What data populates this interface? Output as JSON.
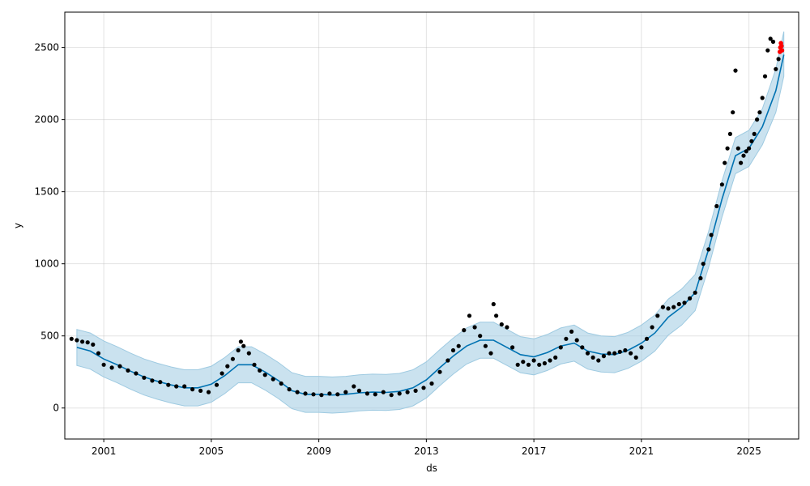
{
  "chart_data": {
    "type": "line",
    "title": "",
    "xlabel": "ds",
    "ylabel": "y",
    "xlim": [
      1999.55,
      2026.85
    ],
    "ylim": [
      -215,
      2745
    ],
    "x_ticks": [
      2001,
      2005,
      2009,
      2013,
      2017,
      2021,
      2025
    ],
    "x_tick_labels": [
      "2001",
      "2005",
      "2009",
      "2013",
      "2017",
      "2021",
      "2025"
    ],
    "y_ticks": [
      0,
      500,
      1000,
      1500,
      2000,
      2500
    ],
    "y_tick_labels": [
      "0",
      "500",
      "1000",
      "1500",
      "2000",
      "2500"
    ],
    "grid": true,
    "colors": {
      "observed": "#000000",
      "forecast_line": "#0072B2",
      "uncertainty_band": "#9ecae1",
      "highlight": "#ff0000"
    },
    "forecast": {
      "name": "yhat",
      "x": [
        2000.0,
        2000.5,
        2001.0,
        2001.5,
        2002.0,
        2002.5,
        2003.0,
        2003.5,
        2004.0,
        2004.5,
        2005.0,
        2005.5,
        2006.0,
        2006.5,
        2007.0,
        2007.5,
        2008.0,
        2008.5,
        2009.0,
        2009.5,
        2010.0,
        2010.5,
        2011.0,
        2011.5,
        2012.0,
        2012.5,
        2013.0,
        2013.5,
        2014.0,
        2014.5,
        2015.0,
        2015.5,
        2016.0,
        2016.5,
        2017.0,
        2017.5,
        2018.0,
        2018.5,
        2019.0,
        2019.5,
        2020.0,
        2020.5,
        2021.0,
        2021.5,
        2022.0,
        2022.5,
        2023.0,
        2023.5,
        2024.0,
        2024.5,
        2025.0,
        2025.5,
        2026.0,
        2026.3
      ],
      "y": [
        420,
        395,
        340,
        300,
        255,
        215,
        185,
        160,
        140,
        140,
        165,
        225,
        300,
        300,
        250,
        190,
        120,
        95,
        95,
        90,
        95,
        105,
        110,
        108,
        115,
        140,
        195,
        280,
        360,
        430,
        470,
        470,
        420,
        370,
        355,
        385,
        430,
        450,
        395,
        375,
        370,
        400,
        450,
        520,
        630,
        700,
        800,
        1100,
        1450,
        1750,
        1800,
        1950,
        2200,
        2450
      ],
      "upper": [
        545,
        520,
        465,
        425,
        380,
        340,
        310,
        285,
        265,
        265,
        290,
        350,
        425,
        425,
        375,
        315,
        245,
        220,
        220,
        215,
        220,
        230,
        235,
        233,
        240,
        265,
        320,
        405,
        485,
        555,
        595,
        595,
        545,
        495,
        480,
        510,
        555,
        575,
        520,
        500,
        495,
        525,
        575,
        645,
        755,
        825,
        925,
        1225,
        1575,
        1875,
        1925,
        2075,
        2350,
        2610
      ],
      "lower": [
        295,
        270,
        215,
        175,
        130,
        90,
        60,
        35,
        15,
        15,
        40,
        100,
        175,
        175,
        125,
        65,
        -5,
        -30,
        -30,
        -35,
        -30,
        -20,
        -15,
        -17,
        -10,
        15,
        70,
        155,
        235,
        305,
        345,
        345,
        295,
        245,
        230,
        260,
        305,
        325,
        270,
        250,
        245,
        275,
        325,
        395,
        505,
        575,
        675,
        975,
        1325,
        1625,
        1675,
        1825,
        2050,
        2300
      ]
    },
    "observed": {
      "name": "y",
      "x": [
        1999.8,
        2000.0,
        2000.2,
        2000.4,
        2000.6,
        2000.8,
        2001.0,
        2001.3,
        2001.6,
        2001.9,
        2002.2,
        2002.5,
        2002.8,
        2003.1,
        2003.4,
        2003.7,
        2004.0,
        2004.3,
        2004.6,
        2004.9,
        2005.2,
        2005.4,
        2005.6,
        2005.8,
        2006.0,
        2006.1,
        2006.2,
        2006.4,
        2006.6,
        2006.8,
        2007.0,
        2007.3,
        2007.6,
        2007.9,
        2008.2,
        2008.5,
        2008.8,
        2009.1,
        2009.4,
        2009.7,
        2010.0,
        2010.3,
        2010.5,
        2010.8,
        2011.1,
        2011.4,
        2011.7,
        2012.0,
        2012.3,
        2012.6,
        2012.9,
        2013.2,
        2013.5,
        2013.8,
        2014.0,
        2014.2,
        2014.4,
        2014.6,
        2014.8,
        2015.0,
        2015.2,
        2015.4,
        2015.5,
        2015.6,
        2015.8,
        2016.0,
        2016.2,
        2016.4,
        2016.6,
        2016.8,
        2017.0,
        2017.2,
        2017.4,
        2017.6,
        2017.8,
        2018.0,
        2018.2,
        2018.4,
        2018.6,
        2018.8,
        2019.0,
        2019.2,
        2019.4,
        2019.6,
        2019.8,
        2020.0,
        2020.2,
        2020.4,
        2020.6,
        2020.8,
        2021.0,
        2021.2,
        2021.4,
        2021.6,
        2021.8,
        2022.0,
        2022.2,
        2022.4,
        2022.6,
        2022.8,
        2023.0,
        2023.2,
        2023.3,
        2023.5,
        2023.6,
        2023.8,
        2024.0,
        2024.1,
        2024.2,
        2024.3,
        2024.4,
        2024.5,
        2024.6,
        2024.7,
        2024.8,
        2024.9,
        2025.0,
        2025.1,
        2025.2,
        2025.3,
        2025.4,
        2025.5,
        2025.6,
        2025.7,
        2025.8,
        2025.9,
        2026.0,
        2026.1
      ],
      "y": [
        480,
        470,
        460,
        455,
        440,
        380,
        300,
        280,
        290,
        260,
        240,
        210,
        190,
        180,
        160,
        150,
        150,
        130,
        120,
        110,
        160,
        240,
        290,
        340,
        400,
        460,
        430,
        380,
        300,
        260,
        230,
        200,
        170,
        130,
        110,
        100,
        95,
        90,
        100,
        95,
        110,
        150,
        120,
        100,
        95,
        110,
        90,
        100,
        110,
        120,
        140,
        170,
        250,
        330,
        400,
        430,
        540,
        640,
        560,
        500,
        430,
        380,
        720,
        640,
        580,
        560,
        420,
        300,
        320,
        300,
        330,
        300,
        310,
        330,
        350,
        420,
        480,
        530,
        470,
        420,
        380,
        350,
        330,
        360,
        380,
        380,
        390,
        400,
        380,
        350,
        420,
        480,
        560,
        640,
        700,
        690,
        700,
        720,
        730,
        760,
        800,
        900,
        1000,
        1100,
        1200,
        1400,
        1550,
        1700,
        1800,
        1900,
        2050,
        2340,
        1800,
        1700,
        1750,
        1780,
        1800,
        1850,
        1900,
        2000,
        2050,
        2150,
        2300,
        2480,
        2560,
        2540,
        2350,
        2420
      ]
    },
    "highlight": {
      "name": "recent",
      "x": [
        2026.15,
        2026.17,
        2026.19,
        2026.21,
        2026.23
      ],
      "y": [
        2470,
        2500,
        2530,
        2510,
        2480
      ]
    }
  }
}
